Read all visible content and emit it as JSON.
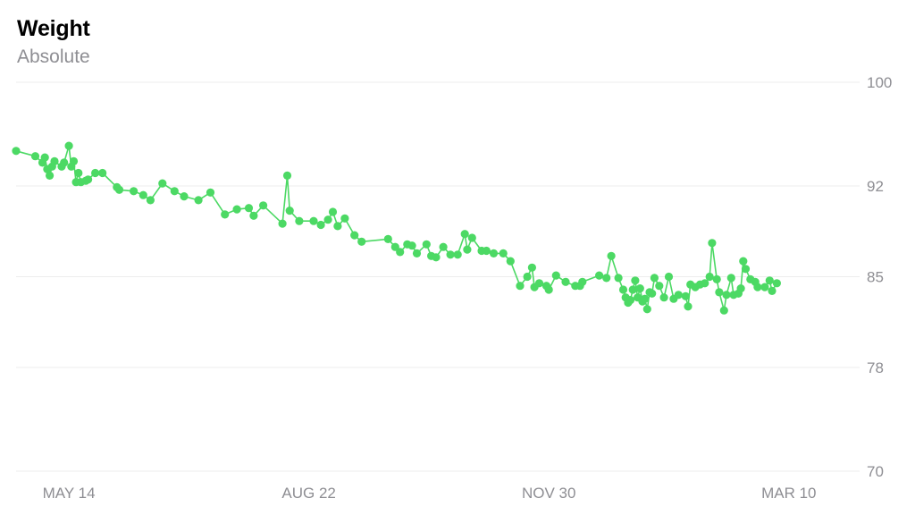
{
  "header": {
    "title": "Weight",
    "subtitle": "Absolute"
  },
  "colors": {
    "series": "#4cd964",
    "grid": "#ececec",
    "tick_text": "#8e8e93"
  },
  "chart_data": {
    "type": "line",
    "title": "Weight",
    "subtitle": "Absolute",
    "xlabel": "",
    "ylabel": "",
    "x_tick_labels": [
      "MAY 14",
      "AUG 22",
      "NOV 30",
      "MAR 10"
    ],
    "x_tick_dates": [
      "2018-05-14",
      "2018-08-22",
      "2018-11-30",
      "2019-03-10"
    ],
    "xlim": [
      "2018-04-22",
      "2019-04-07"
    ],
    "y_ticks": [
      70,
      78,
      85,
      92,
      100
    ],
    "ylim": [
      70,
      100
    ],
    "grid": true,
    "legend": "none",
    "series": [
      {
        "points": [
          [
            "2018-04-22",
            94.7
          ],
          [
            "2018-04-30",
            94.3
          ],
          [
            "2018-05-03",
            93.8
          ],
          [
            "2018-05-04",
            94.2
          ],
          [
            "2018-05-05",
            93.3
          ],
          [
            "2018-05-06",
            92.8
          ],
          [
            "2018-05-07",
            93.5
          ],
          [
            "2018-05-08",
            93.9
          ],
          [
            "2018-05-11",
            93.5
          ],
          [
            "2018-05-12",
            93.8
          ],
          [
            "2018-05-14",
            95.1
          ],
          [
            "2018-05-15",
            93.5
          ],
          [
            "2018-05-16",
            93.9
          ],
          [
            "2018-05-17",
            92.3
          ],
          [
            "2018-05-18",
            93.0
          ],
          [
            "2018-05-19",
            92.3
          ],
          [
            "2018-05-21",
            92.4
          ],
          [
            "2018-05-22",
            92.5
          ],
          [
            "2018-05-25",
            93.0
          ],
          [
            "2018-05-28",
            93.0
          ],
          [
            "2018-06-03",
            91.9
          ],
          [
            "2018-06-04",
            91.7
          ],
          [
            "2018-06-10",
            91.6
          ],
          [
            "2018-06-14",
            91.3
          ],
          [
            "2018-06-17",
            90.9
          ],
          [
            "2018-06-22",
            92.2
          ],
          [
            "2018-06-27",
            91.6
          ],
          [
            "2018-07-01",
            91.2
          ],
          [
            "2018-07-07",
            90.9
          ],
          [
            "2018-07-12",
            91.5
          ],
          [
            "2018-07-18",
            89.8
          ],
          [
            "2018-07-23",
            90.2
          ],
          [
            "2018-07-28",
            90.3
          ],
          [
            "2018-07-30",
            89.7
          ],
          [
            "2018-08-03",
            90.5
          ],
          [
            "2018-08-11",
            89.1
          ],
          [
            "2018-08-13",
            92.8
          ],
          [
            "2018-08-14",
            90.1
          ],
          [
            "2018-08-18",
            89.3
          ],
          [
            "2018-08-24",
            89.3
          ],
          [
            "2018-08-27",
            89.0
          ],
          [
            "2018-08-30",
            89.4
          ],
          [
            "2018-09-01",
            90.0
          ],
          [
            "2018-09-03",
            88.9
          ],
          [
            "2018-09-06",
            89.5
          ],
          [
            "2018-09-10",
            88.2
          ],
          [
            "2018-09-13",
            87.7
          ],
          [
            "2018-09-24",
            87.9
          ],
          [
            "2018-09-27",
            87.3
          ],
          [
            "2018-09-29",
            86.9
          ],
          [
            "2018-10-02",
            87.5
          ],
          [
            "2018-10-04",
            87.4
          ],
          [
            "2018-10-06",
            86.8
          ],
          [
            "2018-10-10",
            87.5
          ],
          [
            "2018-10-12",
            86.6
          ],
          [
            "2018-10-14",
            86.5
          ],
          [
            "2018-10-17",
            87.3
          ],
          [
            "2018-10-20",
            86.7
          ],
          [
            "2018-10-23",
            86.7
          ],
          [
            "2018-10-26",
            88.3
          ],
          [
            "2018-10-27",
            87.1
          ],
          [
            "2018-10-29",
            88.0
          ],
          [
            "2018-11-02",
            87.0
          ],
          [
            "2018-11-04",
            87.0
          ],
          [
            "2018-11-07",
            86.8
          ],
          [
            "2018-11-11",
            86.8
          ],
          [
            "2018-11-14",
            86.2
          ],
          [
            "2018-11-18",
            84.3
          ],
          [
            "2018-11-21",
            85.0
          ],
          [
            "2018-11-23",
            85.7
          ],
          [
            "2018-11-24",
            84.2
          ],
          [
            "2018-11-26",
            84.5
          ],
          [
            "2018-11-29",
            84.3
          ],
          [
            "2018-11-30",
            84.0
          ],
          [
            "2018-12-03",
            85.1
          ],
          [
            "2018-12-07",
            84.6
          ],
          [
            "2018-12-11",
            84.3
          ],
          [
            "2018-12-13",
            84.3
          ],
          [
            "2018-12-14",
            84.6
          ],
          [
            "2018-12-21",
            85.1
          ],
          [
            "2018-12-24",
            84.9
          ],
          [
            "2018-12-26",
            86.6
          ],
          [
            "2018-12-29",
            84.9
          ],
          [
            "2018-12-31",
            84.0
          ],
          [
            "2019-01-01",
            83.4
          ],
          [
            "2019-01-02",
            83.0
          ],
          [
            "2019-01-03",
            83.2
          ],
          [
            "2019-01-04",
            84.0
          ],
          [
            "2019-01-05",
            84.7
          ],
          [
            "2019-01-06",
            83.4
          ],
          [
            "2019-01-07",
            84.1
          ],
          [
            "2019-01-08",
            83.1
          ],
          [
            "2019-01-09",
            83.3
          ],
          [
            "2019-01-10",
            82.5
          ],
          [
            "2019-01-11",
            83.8
          ],
          [
            "2019-01-12",
            83.7
          ],
          [
            "2019-01-13",
            84.9
          ],
          [
            "2019-01-15",
            84.3
          ],
          [
            "2019-01-17",
            83.4
          ],
          [
            "2019-01-19",
            85.0
          ],
          [
            "2019-01-21",
            83.3
          ],
          [
            "2019-01-23",
            83.6
          ],
          [
            "2019-01-26",
            83.5
          ],
          [
            "2019-01-27",
            82.7
          ],
          [
            "2019-01-28",
            84.4
          ],
          [
            "2019-01-30",
            84.2
          ],
          [
            "2019-02-01",
            84.4
          ],
          [
            "2019-02-03",
            84.5
          ],
          [
            "2019-02-05",
            85.0
          ],
          [
            "2019-02-06",
            87.6
          ],
          [
            "2019-02-08",
            84.8
          ],
          [
            "2019-02-09",
            83.8
          ],
          [
            "2019-02-11",
            82.4
          ],
          [
            "2019-02-12",
            83.6
          ],
          [
            "2019-02-14",
            84.9
          ],
          [
            "2019-02-15",
            83.6
          ],
          [
            "2019-02-17",
            83.7
          ],
          [
            "2019-02-18",
            84.1
          ],
          [
            "2019-02-19",
            86.2
          ],
          [
            "2019-02-20",
            85.6
          ],
          [
            "2019-02-22",
            84.8
          ],
          [
            "2019-02-24",
            84.6
          ],
          [
            "2019-02-25",
            84.2
          ],
          [
            "2019-02-28",
            84.2
          ],
          [
            "2019-03-02",
            84.7
          ],
          [
            "2019-03-03",
            83.9
          ],
          [
            "2019-03-05",
            84.5
          ]
        ]
      }
    ]
  }
}
